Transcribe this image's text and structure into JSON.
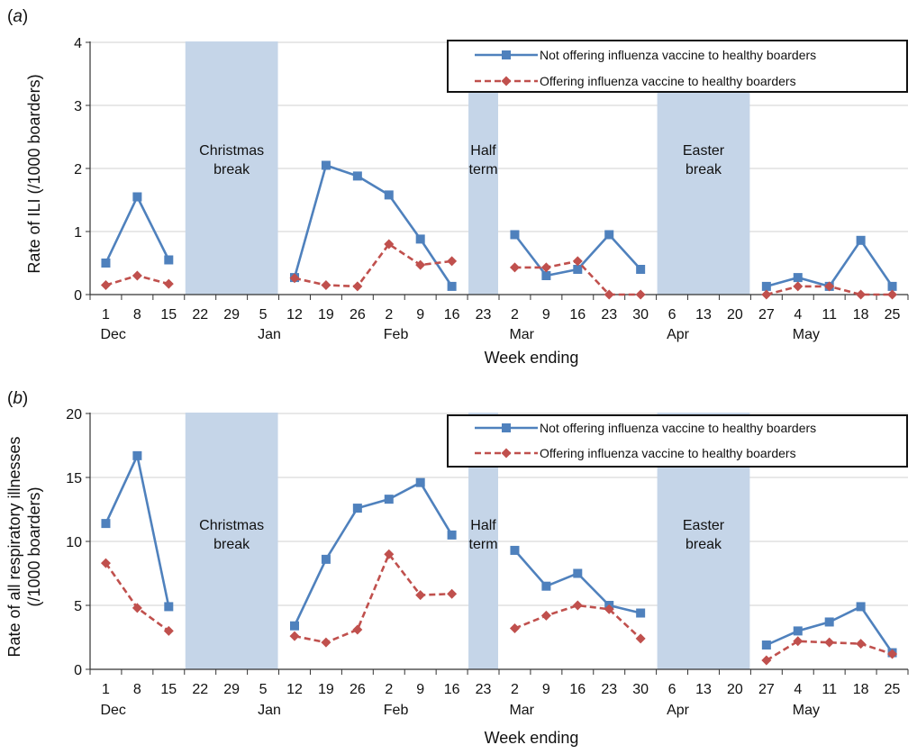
{
  "colors": {
    "not_offering": "#4f81bd",
    "offering": "#c0504d",
    "shade": "#c5d5e8",
    "grid": "#d0d0d0",
    "axis": "#333333"
  },
  "chart_data": [
    {
      "panel": "(a)",
      "panel_prefix": "(",
      "panel_letter": "a",
      "panel_suffix": ")",
      "type": "line",
      "ylabel": "Rate of ILI (/1000 boarders)",
      "ylabel_lines": [
        "Rate of ILI (/1000 boarders)"
      ],
      "xlabel": "Week ending",
      "ylim": [
        0,
        4
      ],
      "yticks": [
        "0",
        "1",
        "2",
        "3",
        "4"
      ],
      "grid": true,
      "legend_position": "top-right",
      "x": [
        "1",
        "8",
        "15",
        "22",
        "29",
        "5",
        "12",
        "19",
        "26",
        "2",
        "9",
        "16",
        "23",
        "2",
        "9",
        "16",
        "23",
        "30",
        "6",
        "13",
        "20",
        "27",
        "4",
        "11",
        "18",
        "25"
      ],
      "months": [
        {
          "label": "Dec",
          "at": 0
        },
        {
          "label": "Jan",
          "at": 5
        },
        {
          "label": "Feb",
          "at": 9
        },
        {
          "label": "Mar",
          "at": 13
        },
        {
          "label": "Apr",
          "at": 18
        },
        {
          "label": "May",
          "at": 22
        }
      ],
      "breaks": [
        {
          "lines": [
            "Christmas",
            "break"
          ],
          "from": 3,
          "to": 5
        },
        {
          "lines": [
            "Half",
            "term"
          ],
          "from": 12,
          "to": 12
        },
        {
          "lines": [
            "Easter",
            "break"
          ],
          "from": 18,
          "to": 20
        }
      ],
      "series": [
        {
          "name": "Not offering influenza vaccine to healthy boarders",
          "style": "solid",
          "marker": "square",
          "values": [
            0.5,
            1.55,
            0.55,
            null,
            null,
            null,
            0.27,
            2.05,
            1.88,
            1.58,
            0.88,
            0.13,
            null,
            0.95,
            0.3,
            0.4,
            0.95,
            0.4,
            null,
            null,
            null,
            0.13,
            0.27,
            0.13,
            0.86,
            0.13
          ]
        },
        {
          "name": "Offering influenza vaccine to healthy boarders",
          "style": "dashed",
          "marker": "diamond",
          "values": [
            0.15,
            0.3,
            0.17,
            null,
            null,
            null,
            0.26,
            0.15,
            0.13,
            0.8,
            0.47,
            0.53,
            null,
            0.43,
            0.43,
            0.53,
            0.0,
            0.0,
            null,
            null,
            null,
            0.0,
            0.13,
            0.13,
            0.0,
            0.0
          ]
        }
      ]
    },
    {
      "panel": "(b)",
      "panel_prefix": "(",
      "panel_letter": "b",
      "panel_suffix": ")",
      "type": "line",
      "ylabel": "Rate of all respiratory illnesses (/1000 boarders)",
      "ylabel_lines": [
        "Rate of all respiratory illnesses",
        "(/1000 boarders)"
      ],
      "xlabel": "Week ending",
      "ylim": [
        0,
        20
      ],
      "yticks": [
        "0",
        "5",
        "10",
        "15",
        "20"
      ],
      "grid": true,
      "legend_position": "top-right",
      "x": [
        "1",
        "8",
        "15",
        "22",
        "29",
        "5",
        "12",
        "19",
        "26",
        "2",
        "9",
        "16",
        "23",
        "2",
        "9",
        "16",
        "23",
        "30",
        "6",
        "13",
        "20",
        "27",
        "4",
        "11",
        "18",
        "25"
      ],
      "months": [
        {
          "label": "Dec",
          "at": 0
        },
        {
          "label": "Jan",
          "at": 5
        },
        {
          "label": "Feb",
          "at": 9
        },
        {
          "label": "Mar",
          "at": 13
        },
        {
          "label": "Apr",
          "at": 18
        },
        {
          "label": "May",
          "at": 22
        }
      ],
      "breaks": [
        {
          "lines": [
            "Christmas",
            "break"
          ],
          "from": 3,
          "to": 5
        },
        {
          "lines": [
            "Half",
            "term"
          ],
          "from": 12,
          "to": 12
        },
        {
          "lines": [
            "Easter",
            "break"
          ],
          "from": 18,
          "to": 20
        }
      ],
      "series": [
        {
          "name": "Not offering influenza vaccine to healthy boarders",
          "style": "solid",
          "marker": "square",
          "values": [
            11.4,
            16.7,
            4.9,
            null,
            null,
            null,
            3.4,
            8.6,
            12.6,
            13.3,
            14.6,
            10.5,
            null,
            9.3,
            6.5,
            7.5,
            5.0,
            4.4,
            null,
            null,
            null,
            1.9,
            3.0,
            3.7,
            4.9,
            1.3
          ]
        },
        {
          "name": "Offering influenza vaccine to healthy boarders",
          "style": "dashed",
          "marker": "diamond",
          "values": [
            8.3,
            4.8,
            3.0,
            null,
            null,
            null,
            2.6,
            2.1,
            3.1,
            9.0,
            5.8,
            5.9,
            null,
            3.2,
            4.2,
            5.0,
            4.7,
            2.4,
            null,
            null,
            null,
            0.7,
            2.2,
            2.1,
            2.0,
            1.2
          ]
        }
      ]
    }
  ]
}
